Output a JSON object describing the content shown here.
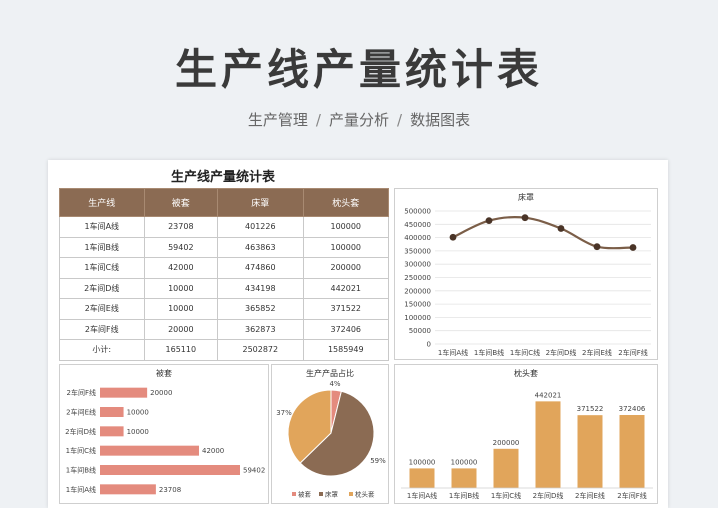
{
  "hero": {
    "title": "生产线产量统计表"
  },
  "breadcrumb": [
    "生产管理",
    "产量分析",
    "数据图表"
  ],
  "breadcrumb_sep": "/",
  "sheet": {
    "title": "生产线产量统计表",
    "table": {
      "headers": [
        "生产线",
        "被套",
        "床罩",
        "枕头套"
      ],
      "rows": [
        [
          "1车间A线",
          "23708",
          "401226",
          "100000"
        ],
        [
          "1车间B线",
          "59402",
          "463863",
          "100000"
        ],
        [
          "1车间C线",
          "42000",
          "474860",
          "200000"
        ],
        [
          "2车间D线",
          "10000",
          "434198",
          "442021"
        ],
        [
          "2车间E线",
          "10000",
          "365852",
          "371522"
        ],
        [
          "2车间F线",
          "20000",
          "362873",
          "372406"
        ],
        [
          "小计:",
          "165110",
          "2502872",
          "1585949"
        ]
      ]
    }
  },
  "colors": {
    "header": "#8b6b53",
    "line": "#7b5e48",
    "bar_salmon": "#e48b7e",
    "bar_tan": "#e1a55b",
    "pie_brown": "#8b6b53"
  },
  "chart_data": [
    {
      "type": "line",
      "title": "床罩",
      "categories": [
        "1车间A线",
        "1车间B线",
        "1车间C线",
        "2车间D线",
        "2车间E线",
        "2车间F线"
      ],
      "values": [
        401226,
        463863,
        474860,
        434198,
        365852,
        362873
      ],
      "ylim": [
        0,
        500000
      ],
      "yticks": [
        "0",
        "50000",
        "100000",
        "150000",
        "200000",
        "250000",
        "300000",
        "350000",
        "400000",
        "450000",
        "500000"
      ],
      "grid": true
    },
    {
      "type": "bar",
      "orientation": "horizontal",
      "title": "被套",
      "categories": [
        "1车间A线",
        "1车间B线",
        "1车间C线",
        "2车间D线",
        "2车间E线",
        "2车间F线"
      ],
      "values": [
        23708,
        59402,
        42000,
        10000,
        10000,
        20000
      ],
      "data_labels": [
        "23708",
        "59402",
        "42000",
        "10000",
        "10000",
        "20000"
      ]
    },
    {
      "type": "pie",
      "title": "生产产品占比",
      "labels": [
        "被套",
        "床罩",
        "枕头套"
      ],
      "values": [
        165110,
        2502872,
        1585949
      ],
      "percent_labels": [
        "4%",
        "59%",
        "37%"
      ],
      "legend": "bottom"
    },
    {
      "type": "bar",
      "title": "枕头套",
      "categories": [
        "1车间A线",
        "1车间B线",
        "1车间C线",
        "2车间D线",
        "2车间E线",
        "2车间F线"
      ],
      "values": [
        100000,
        100000,
        200000,
        442021,
        371522,
        372406
      ],
      "data_labels": [
        "100000",
        "100000",
        "200000",
        "442021",
        "371522",
        "372406"
      ],
      "ylim": [
        0,
        500000
      ]
    }
  ]
}
